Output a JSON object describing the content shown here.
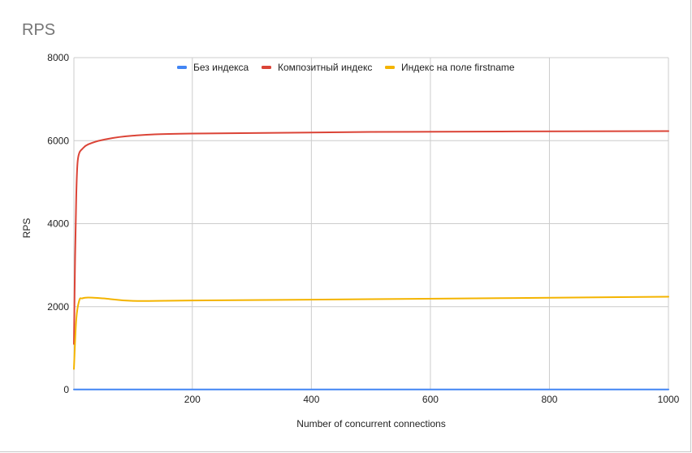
{
  "chart_data": {
    "type": "line",
    "title": "RPS",
    "xlabel": "Number of concurrent connections",
    "ylabel": "RPS",
    "xlim": [
      1,
      1000
    ],
    "ylim": [
      0,
      8000
    ],
    "x_ticks": [
      200,
      400,
      600,
      800,
      1000
    ],
    "y_ticks": [
      0,
      2000,
      4000,
      6000,
      8000
    ],
    "grid": true,
    "legend_position": "top",
    "series": [
      {
        "name": "Без индекса",
        "color": "#4285f4",
        "x": [
          1,
          5,
          10,
          25,
          50,
          100,
          200,
          500,
          1000
        ],
        "values": [
          5,
          5,
          5,
          5,
          5,
          5,
          5,
          5,
          5
        ]
      },
      {
        "name": "Композитный индекс",
        "color": "#db4437",
        "x": [
          1,
          3,
          5,
          7,
          10,
          15,
          25,
          50,
          100,
          200,
          500,
          1000
        ],
        "values": [
          1100,
          3200,
          4700,
          5450,
          5700,
          5800,
          5910,
          6020,
          6120,
          6170,
          6210,
          6230
        ]
      },
      {
        "name": "Индекс на поле firstname",
        "color": "#f4b400",
        "x": [
          1,
          5,
          10,
          15,
          25,
          50,
          100,
          200,
          500,
          1000
        ],
        "values": [
          500,
          1700,
          2150,
          2200,
          2220,
          2200,
          2140,
          2150,
          2180,
          2240
        ]
      }
    ]
  }
}
